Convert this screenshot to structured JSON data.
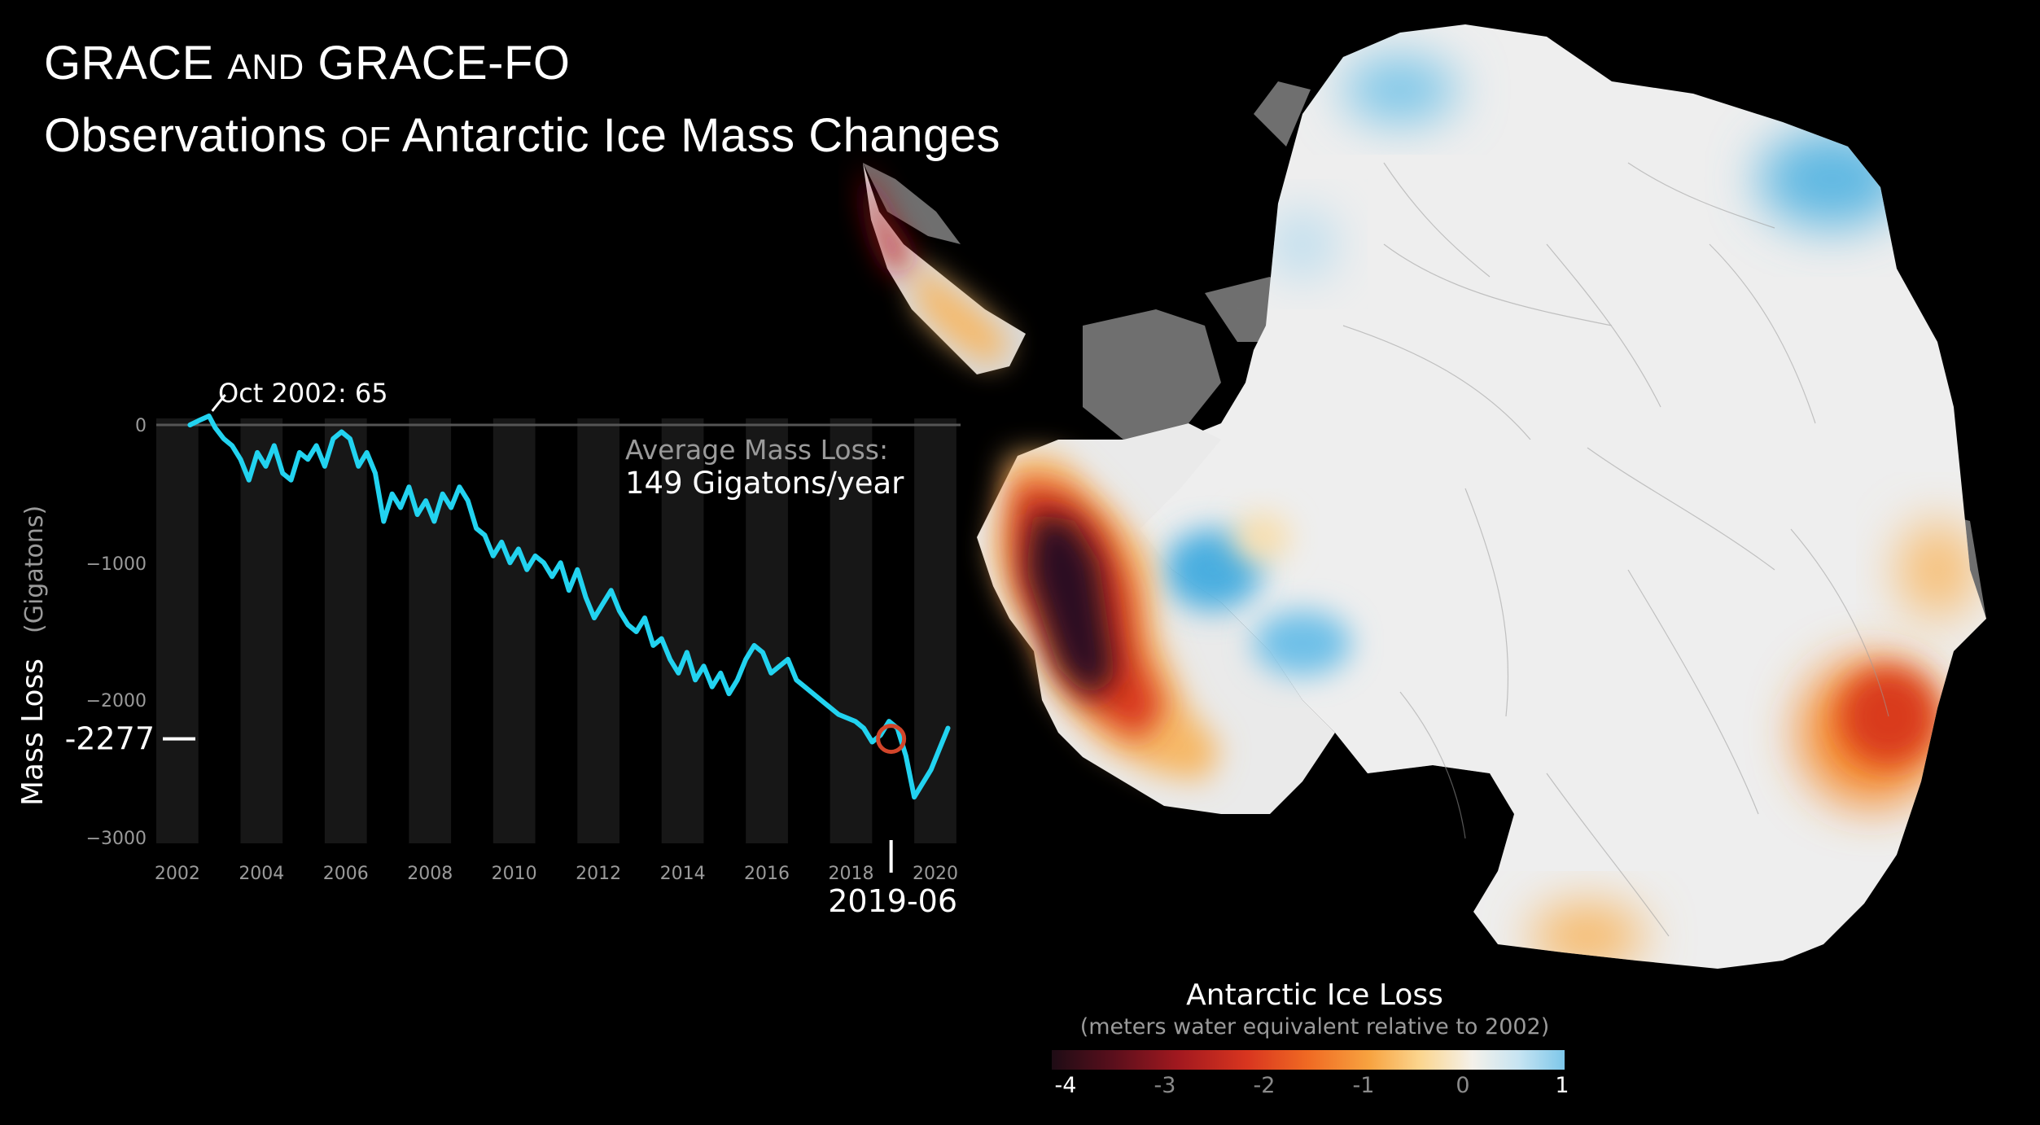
{
  "title": {
    "line1_a": "GRACE",
    "line1_b": "AND",
    "line1_c": "GRACE-FO",
    "line2_a": "Observations",
    "line2_b": "OF",
    "line2_c": "Antarctic Ice Mass Changes"
  },
  "chart_data": {
    "type": "line",
    "ylabel": "Mass Loss",
    "ylabel_unit": "(Gigatons)",
    "ylim": [
      -3000,
      0
    ],
    "xlim": [
      2001.5,
      2020.6
    ],
    "y_ticks": [
      "0",
      "−1000",
      "−2000",
      "−3000"
    ],
    "x_ticks": [
      "2002",
      "2004",
      "2006",
      "2008",
      "2010",
      "2012",
      "2014",
      "2016",
      "2018",
      "2020"
    ],
    "series": [
      {
        "color": "#22d3f0",
        "x": [
          2002.3,
          2002.5,
          2002.75,
          2002.9,
          2003.1,
          2003.3,
          2003.5,
          2003.7,
          2003.9,
          2004.1,
          2004.3,
          2004.5,
          2004.7,
          2004.9,
          2005.1,
          2005.3,
          2005.5,
          2005.7,
          2005.9,
          2006.1,
          2006.3,
          2006.5,
          2006.7,
          2006.9,
          2007.1,
          2007.3,
          2007.5,
          2007.7,
          2007.9,
          2008.1,
          2008.3,
          2008.5,
          2008.7,
          2008.9,
          2009.1,
          2009.3,
          2009.5,
          2009.7,
          2009.9,
          2010.1,
          2010.3,
          2010.5,
          2010.7,
          2010.9,
          2011.1,
          2011.3,
          2011.5,
          2011.7,
          2011.9,
          2012.1,
          2012.3,
          2012.5,
          2012.7,
          2012.9,
          2013.1,
          2013.3,
          2013.5,
          2013.7,
          2013.9,
          2014.1,
          2014.3,
          2014.5,
          2014.7,
          2014.9,
          2015.1,
          2015.3,
          2015.5,
          2015.7,
          2015.9,
          2016.1,
          2016.3,
          2016.5,
          2016.7,
          2016.9,
          2017.3,
          2017.7,
          2018.1,
          2018.3,
          2018.5,
          2018.7,
          2018.9,
          2019.1,
          2019.3,
          2019.5,
          2019.7,
          2019.9,
          2020.1,
          2020.3
        ],
        "y": [
          0,
          30,
          65,
          -20,
          -100,
          -150,
          -250,
          -400,
          -200,
          -300,
          -150,
          -350,
          -400,
          -200,
          -250,
          -150,
          -300,
          -100,
          -50,
          -100,
          -300,
          -200,
          -350,
          -700,
          -500,
          -600,
          -450,
          -650,
          -550,
          -700,
          -500,
          -600,
          -450,
          -550,
          -750,
          -800,
          -950,
          -850,
          -1000,
          -900,
          -1050,
          -950,
          -1000,
          -1100,
          -1000,
          -1200,
          -1050,
          -1250,
          -1400,
          -1300,
          -1200,
          -1350,
          -1450,
          -1500,
          -1400,
          -1600,
          -1550,
          -1700,
          -1800,
          -1650,
          -1850,
          -1750,
          -1900,
          -1800,
          -1950,
          -1850,
          -1700,
          -1600,
          -1650,
          -1800,
          -1750,
          -1700,
          -1850,
          -1900,
          -2000,
          -2100,
          -2150,
          -2200,
          -2300,
          -2250,
          -2150,
          -2200,
          -2400,
          -2700,
          -2600,
          -2500,
          -2350,
          -2200
        ]
      }
    ],
    "annotations": {
      "start_label": "Oct 2002: 65",
      "avg_label": "Average Mass Loss:",
      "avg_value": "149 Gigatons/year",
      "current_value": "-2277",
      "current_date": "2019-06",
      "marker_x": 2018.95,
      "marker_y": -2277
    }
  },
  "legend": {
    "title": "Antarctic Ice Loss",
    "subtitle": "(meters water equivalent relative to 2002)",
    "labels": [
      "-4",
      "-3",
      "-2",
      "-1",
      "0",
      "1"
    ],
    "label_colors": [
      "#ffffff",
      "#8a8a8a",
      "#8a8a8a",
      "#8a8a8a",
      "#8a8a8a",
      "#ffffff"
    ]
  },
  "colors": {
    "line": "#22d3f0",
    "marker": "#d2452a",
    "stripe": "#171717",
    "background": "#000000"
  }
}
